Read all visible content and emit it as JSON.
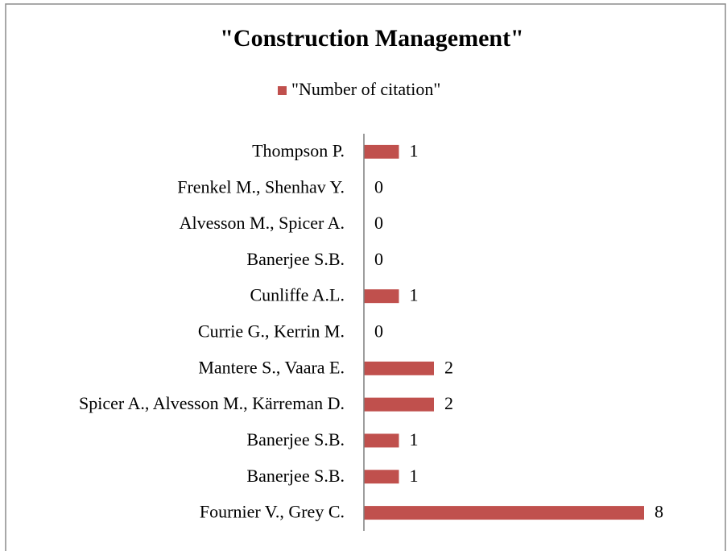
{
  "chart_data": {
    "type": "bar",
    "orientation": "horizontal",
    "title": "\"Construction Management\"",
    "categories": [
      "Thompson P.",
      "Frenkel M., Shenhav Y.",
      "Alvesson M., Spicer A.",
      "Banerjee S.B.",
      "Cunliffe A.L.",
      "Currie G., Kerrin M.",
      "Mantere S., Vaara E.",
      "Spicer A., Alvesson M., Kärreman D.",
      "Banerjee S.B.",
      "Banerjee S.B.",
      "Fournier V., Grey C."
    ],
    "series": [
      {
        "name": "\"Number of citation\"",
        "color": "#c0504d",
        "values": [
          1,
          0,
          0,
          0,
          1,
          0,
          2,
          2,
          1,
          1,
          8
        ]
      }
    ],
    "xlim": [
      0,
      10
    ],
    "legend": "top"
  }
}
